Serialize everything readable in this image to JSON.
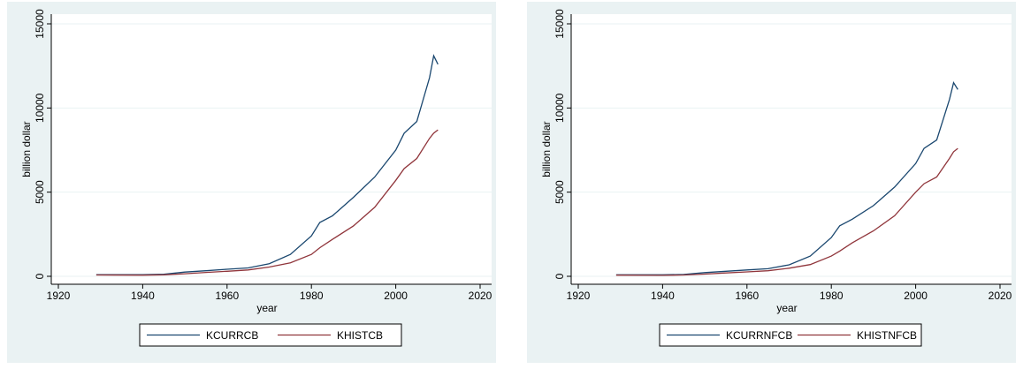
{
  "chart_data": [
    {
      "type": "line",
      "xlabel": "year",
      "ylabel": "billion dollar",
      "x": [
        1929,
        1940,
        1945,
        1950,
        1955,
        1960,
        1965,
        1970,
        1975,
        1980,
        1982,
        1985,
        1990,
        1995,
        2000,
        2002,
        2005,
        2008,
        2009,
        2010
      ],
      "xlim": [
        1920,
        2020
      ],
      "xticks": [
        1920,
        1940,
        1960,
        1980,
        2000,
        2020
      ],
      "ylim": [
        0,
        15000
      ],
      "yticks": [
        0,
        5000,
        10000,
        15000
      ],
      "grid": true,
      "series": [
        {
          "name": "KCURRCB",
          "color": "#1a476f",
          "values": [
            100,
            100,
            120,
            250,
            330,
            420,
            500,
            750,
            1300,
            2400,
            3200,
            3600,
            4700,
            5900,
            7500,
            8500,
            9200,
            11800,
            13100,
            12600
          ]
        },
        {
          "name": "KHISTCB",
          "color": "#90353b",
          "values": [
            80,
            70,
            90,
            150,
            230,
            300,
            380,
            550,
            800,
            1300,
            1700,
            2200,
            3000,
            4100,
            5700,
            6400,
            7000,
            8200,
            8500,
            8700
          ]
        }
      ]
    },
    {
      "type": "line",
      "xlabel": "year",
      "ylabel": "billion dollar",
      "x": [
        1929,
        1940,
        1945,
        1950,
        1955,
        1960,
        1965,
        1970,
        1975,
        1980,
        1982,
        1985,
        1990,
        1995,
        2000,
        2002,
        2005,
        2008,
        2009,
        2010
      ],
      "xlim": [
        1920,
        2020
      ],
      "xticks": [
        1920,
        1940,
        1960,
        1980,
        2000,
        2020
      ],
      "ylim": [
        0,
        15000
      ],
      "yticks": [
        0,
        5000,
        10000,
        15000
      ],
      "grid": true,
      "series": [
        {
          "name": "KCURRNFCB",
          "color": "#1a476f",
          "values": [
            90,
            90,
            110,
            220,
            300,
            380,
            450,
            680,
            1200,
            2300,
            3000,
            3400,
            4200,
            5300,
            6700,
            7600,
            8100,
            10500,
            11500,
            11100
          ]
        },
        {
          "name": "KHISTNFCB",
          "color": "#90353b",
          "values": [
            70,
            60,
            80,
            130,
            200,
            260,
            330,
            480,
            700,
            1200,
            1500,
            2000,
            2700,
            3600,
            5000,
            5500,
            5900,
            7000,
            7400,
            7600
          ]
        }
      ]
    }
  ]
}
